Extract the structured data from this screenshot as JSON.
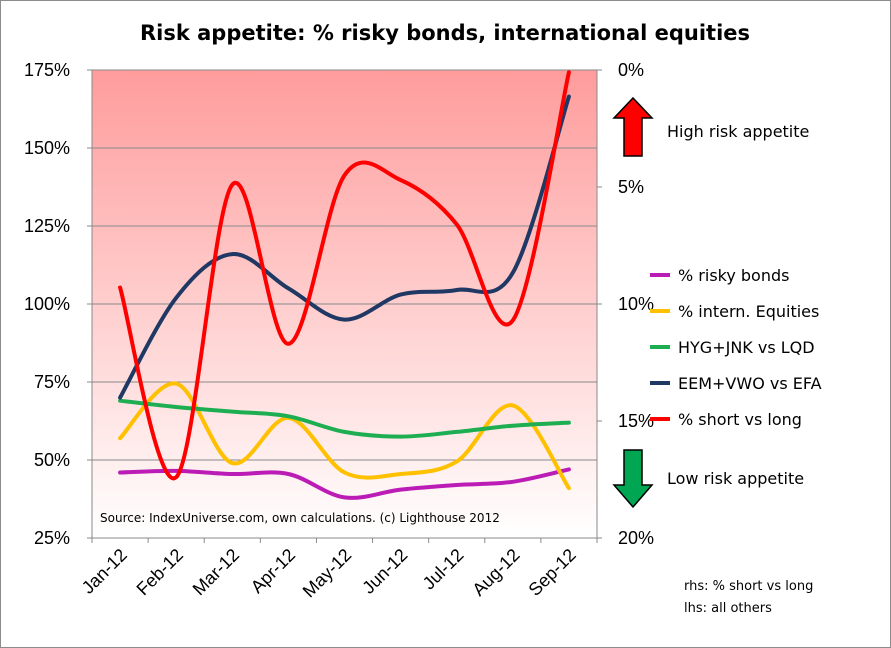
{
  "chart_data": {
    "type": "line",
    "title": "Risk appetite: % risky bonds, international equities",
    "categories": [
      "Jan-12",
      "Feb-12",
      "Mar-12",
      "Apr-12",
      "May-12",
      "Jun-12",
      "Jul-12",
      "Aug-12",
      "Sep-12"
    ],
    "y_left": {
      "ylim": [
        0.25,
        1.75
      ],
      "ticks": [
        "25%",
        "50%",
        "75%",
        "100%",
        "125%",
        "150%",
        "175%"
      ],
      "tick_values": [
        0.25,
        0.5,
        0.75,
        1.0,
        1.25,
        1.5,
        1.75
      ]
    },
    "y_right": {
      "ylim": [
        0.2,
        0.0
      ],
      "inverted": true,
      "ticks": [
        "0%",
        "5%",
        "10%",
        "15%",
        "20%"
      ],
      "tick_values": [
        0.0,
        0.05,
        0.1,
        0.15,
        0.2
      ]
    },
    "grid": true,
    "legend_position": "right",
    "series": [
      {
        "name": "% risky bonds",
        "axis": "left",
        "color": "#bb1cb5",
        "values": [
          0.46,
          0.465,
          0.455,
          0.455,
          0.38,
          0.405,
          0.42,
          0.43,
          0.47
        ]
      },
      {
        "name": "% intern. Equities",
        "axis": "left",
        "color": "#ffc000",
        "values": [
          0.57,
          0.745,
          0.49,
          0.635,
          0.46,
          0.455,
          0.495,
          0.675,
          0.41
        ]
      },
      {
        "name": "HYG+JNK vs LQD",
        "axis": "left",
        "color": "#1eae52",
        "values": [
          0.69,
          0.67,
          0.655,
          0.64,
          0.59,
          0.575,
          0.59,
          0.61,
          0.62
        ]
      },
      {
        "name": "EEM+VWO vs EFA",
        "axis": "left",
        "color": "#1f3864",
        "values": [
          0.7,
          1.02,
          1.16,
          1.05,
          0.95,
          1.03,
          1.045,
          1.1,
          1.665
        ]
      },
      {
        "name": "% short vs long",
        "axis": "right",
        "color": "#ff0000",
        "values": [
          0.093,
          0.174,
          0.049,
          0.117,
          0.045,
          0.047,
          0.066,
          0.107,
          0.001
        ]
      }
    ],
    "annotations": {
      "high": "High risk appetite",
      "low": "Low risk appetite",
      "source": "Source: IndexUniverse.com, own calculations. (c) Lighthouse 2012",
      "rhs_note": "rhs: % short vs long",
      "lhs_note": "lhs: all others"
    },
    "background_gradient": [
      "#ff9c9c",
      "#ffffff"
    ]
  }
}
